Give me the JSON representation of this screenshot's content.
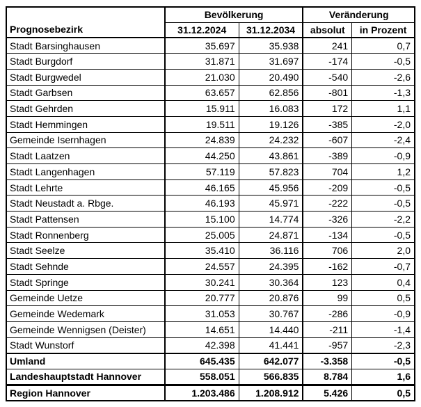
{
  "table": {
    "group_headers": {
      "population": "Bevölkerung",
      "change": "Veränderung"
    },
    "column_headers": {
      "district": "Prognosebezirk",
      "pop_2024": "31.12.2024",
      "pop_2034": "31.12.2034",
      "absolute": "absolut",
      "percent": "in Prozent"
    },
    "rows": [
      {
        "name": "Stadt Barsinghausen",
        "pop_2024": "35.697",
        "pop_2034": "35.938",
        "absolute": "241",
        "percent": "0,7"
      },
      {
        "name": "Stadt Burgdorf",
        "pop_2024": "31.871",
        "pop_2034": "31.697",
        "absolute": "-174",
        "percent": "-0,5"
      },
      {
        "name": "Stadt Burgwedel",
        "pop_2024": "21.030",
        "pop_2034": "20.490",
        "absolute": "-540",
        "percent": "-2,6"
      },
      {
        "name": "Stadt Garbsen",
        "pop_2024": "63.657",
        "pop_2034": "62.856",
        "absolute": "-801",
        "percent": "-1,3"
      },
      {
        "name": "Stadt Gehrden",
        "pop_2024": "15.911",
        "pop_2034": "16.083",
        "absolute": "172",
        "percent": "1,1"
      },
      {
        "name": "Stadt Hemmingen",
        "pop_2024": "19.511",
        "pop_2034": "19.126",
        "absolute": "-385",
        "percent": "-2,0"
      },
      {
        "name": "Gemeinde Isernhagen",
        "pop_2024": "24.839",
        "pop_2034": "24.232",
        "absolute": "-607",
        "percent": "-2,4"
      },
      {
        "name": "Stadt Laatzen",
        "pop_2024": "44.250",
        "pop_2034": "43.861",
        "absolute": "-389",
        "percent": "-0,9"
      },
      {
        "name": "Stadt Langenhagen",
        "pop_2024": "57.119",
        "pop_2034": "57.823",
        "absolute": "704",
        "percent": "1,2"
      },
      {
        "name": "Stadt Lehrte",
        "pop_2024": "46.165",
        "pop_2034": "45.956",
        "absolute": "-209",
        "percent": "-0,5"
      },
      {
        "name": "Stadt Neustadt a. Rbge.",
        "pop_2024": "46.193",
        "pop_2034": "45.971",
        "absolute": "-222",
        "percent": "-0,5"
      },
      {
        "name": "Stadt Pattensen",
        "pop_2024": "15.100",
        "pop_2034": "14.774",
        "absolute": "-326",
        "percent": "-2,2"
      },
      {
        "name": "Stadt Ronnenberg",
        "pop_2024": "25.005",
        "pop_2034": "24.871",
        "absolute": "-134",
        "percent": "-0,5"
      },
      {
        "name": "Stadt Seelze",
        "pop_2024": "35.410",
        "pop_2034": "36.116",
        "absolute": "706",
        "percent": "2,0"
      },
      {
        "name": "Stadt Sehnde",
        "pop_2024": "24.557",
        "pop_2034": "24.395",
        "absolute": "-162",
        "percent": "-0,7"
      },
      {
        "name": "Stadt Springe",
        "pop_2024": "30.241",
        "pop_2034": "30.364",
        "absolute": "123",
        "percent": "0,4"
      },
      {
        "name": "Gemeinde Uetze",
        "pop_2024": "20.777",
        "pop_2034": "20.876",
        "absolute": "99",
        "percent": "0,5"
      },
      {
        "name": "Gemeinde Wedemark",
        "pop_2024": "31.053",
        "pop_2034": "30.767",
        "absolute": "-286",
        "percent": "-0,9"
      },
      {
        "name": "Gemeinde Wennigsen (Deister)",
        "pop_2024": "14.651",
        "pop_2034": "14.440",
        "absolute": "-211",
        "percent": "-1,4"
      },
      {
        "name": "Stadt Wunstorf",
        "pop_2024": "42.398",
        "pop_2034": "41.441",
        "absolute": "-957",
        "percent": "-2,3"
      }
    ],
    "summary_rows": [
      {
        "name": "Umland",
        "pop_2024": "645.435",
        "pop_2034": "642.077",
        "absolute": "-3.358",
        "percent": "-0,5"
      },
      {
        "name": "Landeshauptstadt Hannover",
        "pop_2024": "558.051",
        "pop_2034": "566.835",
        "absolute": "8.784",
        "percent": "1,6"
      },
      {
        "name": "Region Hannover",
        "pop_2024": "1.203.486",
        "pop_2034": "1.208.912",
        "absolute": "5.426",
        "percent": "0,5"
      }
    ]
  },
  "colors": {
    "background": "#ffffff",
    "text": "#000000",
    "border": "#000000"
  }
}
